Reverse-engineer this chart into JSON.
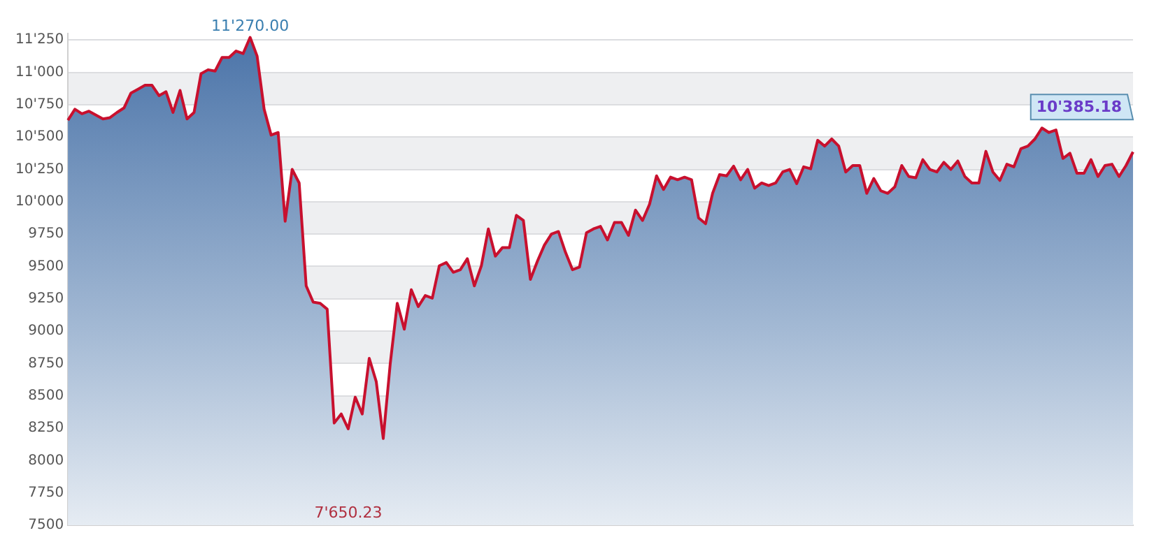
{
  "chart_data": {
    "type": "area",
    "categories": [
      null,
      null,
      null,
      null,
      null,
      null,
      null,
      null,
      null,
      null,
      null,
      null,
      null,
      null,
      null,
      null,
      null,
      null,
      null,
      null,
      null,
      null,
      null,
      null,
      null,
      null,
      null,
      null,
      null,
      null,
      null,
      null,
      null,
      null,
      null,
      null,
      null,
      null,
      null,
      null,
      null,
      null,
      null,
      null,
      null,
      null,
      null,
      null,
      null,
      null,
      null,
      null,
      null,
      null,
      null,
      null,
      null,
      null,
      null,
      null,
      null,
      null,
      null,
      null,
      null,
      null,
      null,
      null,
      null,
      null,
      null,
      null,
      null,
      null,
      null,
      null,
      null,
      null,
      null,
      null,
      null,
      null,
      null,
      null,
      null,
      null,
      null,
      null,
      null,
      null,
      null,
      null,
      null,
      null,
      null,
      null,
      null,
      null,
      null,
      null,
      null,
      null,
      null,
      null,
      null,
      null,
      null,
      null,
      null,
      null,
      null,
      null,
      null,
      null,
      null,
      null,
      null,
      null,
      null,
      null,
      null,
      null,
      null,
      null,
      null,
      null,
      null,
      null,
      null,
      null,
      null,
      null,
      null,
      null,
      null,
      null,
      null,
      null,
      null,
      null,
      null,
      null,
      null,
      null,
      null,
      null,
      null,
      null,
      null,
      null,
      null,
      null,
      null
    ],
    "series": [
      {
        "color": "#c8102e",
        "values": [
          10630,
          10715,
          10680,
          10700,
          10670,
          10640,
          10650,
          10690,
          10725,
          10840,
          10870,
          10900,
          10900,
          10820,
          10850,
          10690,
          10860,
          10640,
          10690,
          10990,
          11020,
          11010,
          11115,
          11115,
          11165,
          11145,
          11270,
          11125,
          10715,
          10515,
          10535,
          9850,
          10250,
          10145,
          9350,
          9225,
          9215,
          9170,
          8290,
          8360,
          8245,
          8490,
          8360,
          8790,
          8610,
          8170,
          8750,
          9215,
          9015,
          9320,
          9190,
          9275,
          9255,
          9505,
          9530,
          9455,
          9475,
          9560,
          9350,
          9505,
          9790,
          9580,
          9645,
          9645,
          9895,
          9855,
          9400,
          9540,
          9665,
          9750,
          9770,
          9610,
          9475,
          9495,
          9760,
          9790,
          9810,
          9705,
          9840,
          9840,
          9740,
          9935,
          9855,
          9980,
          10200,
          10095,
          10190,
          10170,
          10190,
          10170,
          9875,
          9830,
          10065,
          10210,
          10200,
          10275,
          10170,
          10250,
          10105,
          10145,
          10125,
          10145,
          10230,
          10250,
          10140,
          10270,
          10255,
          10475,
          10430,
          10485,
          10430,
          10230,
          10280,
          10280,
          10065,
          10180,
          10085,
          10065,
          10115,
          10280,
          10195,
          10185,
          10325,
          10250,
          10230,
          10305,
          10250,
          10315,
          10195,
          10145,
          10145,
          10390,
          10230,
          10165,
          10290,
          10270,
          10410,
          10430,
          10485,
          10570,
          10535,
          10555,
          10335,
          10375,
          10220,
          10220,
          10325,
          10195,
          10280,
          10290,
          10195,
          10280,
          10385
        ]
      }
    ],
    "ylim": [
      7500,
      11300
    ],
    "yticks": [
      {
        "value": 7500,
        "label": "7500"
      },
      {
        "value": 7750,
        "label": "7750"
      },
      {
        "value": 8000,
        "label": "8000"
      },
      {
        "value": 8250,
        "label": "8250"
      },
      {
        "value": 8500,
        "label": "8500"
      },
      {
        "value": 8750,
        "label": "8750"
      },
      {
        "value": 9000,
        "label": "9000"
      },
      {
        "value": 9250,
        "label": "9250"
      },
      {
        "value": 9500,
        "label": "9500"
      },
      {
        "value": 9750,
        "label": "9750"
      },
      {
        "value": 10000,
        "label": "10'000"
      },
      {
        "value": 10250,
        "label": "10'250"
      },
      {
        "value": 10500,
        "label": "10'500"
      },
      {
        "value": 10750,
        "label": "10'750"
      },
      {
        "value": 11000,
        "label": "11'000"
      },
      {
        "value": 11250,
        "label": "11'250"
      }
    ],
    "annotations": [
      "11'270.00",
      "7'650.23",
      "10'385.18"
    ],
    "grid": true,
    "legend": false
  }
}
